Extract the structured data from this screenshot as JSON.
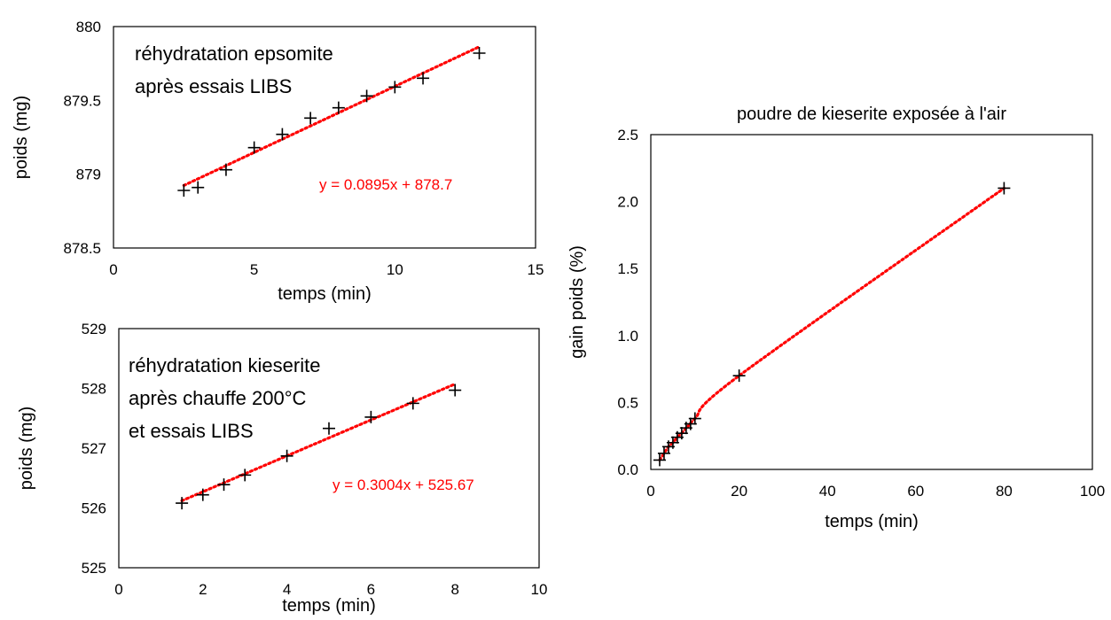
{
  "chart_data": [
    {
      "type": "scatter",
      "title": "",
      "xlabel": "temps (min)",
      "ylabel": "poids (mg)",
      "xlim": [
        0,
        15
      ],
      "ylim": [
        878.5,
        880
      ],
      "xticks": [
        "0",
        "5",
        "10",
        "15"
      ],
      "yticks": [
        "878.5",
        "879",
        "879.5",
        "880"
      ],
      "annotation_lines": [
        "réhydratation epsomite",
        "après essais LIBS"
      ],
      "trend_color": "#ff0000",
      "trendline": {
        "type": "linear",
        "slope": 0.0895,
        "intercept": 878.7,
        "label": "y = 0.0895x + 878.7"
      },
      "series": [
        {
          "x": [
            2.5,
            3,
            4,
            5,
            6,
            7,
            8,
            9,
            10,
            11,
            13
          ],
          "y": [
            878.89,
            878.91,
            879.03,
            879.18,
            879.27,
            879.38,
            879.45,
            879.53,
            879.59,
            879.65,
            879.82
          ]
        }
      ]
    },
    {
      "type": "scatter",
      "title": "",
      "xlabel": "temps (min)",
      "ylabel": "poids (mg)",
      "xlim": [
        0,
        10
      ],
      "ylim": [
        525,
        529
      ],
      "xticks": [
        "0",
        "2",
        "4",
        "6",
        "8",
        "10"
      ],
      "yticks": [
        "525",
        "526",
        "527",
        "528",
        "529"
      ],
      "annotation_lines": [
        "réhydratation kieserite",
        "après chauffe 200°C",
        "et essais LIBS"
      ],
      "trend_color": "#ff0000",
      "trendline": {
        "type": "linear",
        "slope": 0.3004,
        "intercept": 525.67,
        "label": "y = 0.3004x + 525.67"
      },
      "series": [
        {
          "x": [
            1.5,
            2,
            2.5,
            3,
            4,
            5,
            6,
            7,
            8
          ],
          "y": [
            526.08,
            526.22,
            526.39,
            526.55,
            526.87,
            527.33,
            527.52,
            527.75,
            527.97
          ]
        }
      ]
    },
    {
      "type": "scatter",
      "title": "poudre de kieserite exposée à l'air",
      "xlabel": "temps (min)",
      "ylabel": "gain poids (%)",
      "xlim": [
        0,
        100
      ],
      "ylim": [
        0,
        2.5
      ],
      "xticks": [
        "0",
        "20",
        "40",
        "60",
        "80",
        "100"
      ],
      "yticks": [
        "0.0",
        "0.5",
        "1.0",
        "1.5",
        "2.0",
        "2.5"
      ],
      "annotation_lines": [],
      "trend_color": "#ff0000",
      "trendline": {
        "type": "polynomial"
      },
      "series": [
        {
          "x": [
            2,
            3,
            4,
            5,
            6,
            7,
            8,
            9,
            10,
            20,
            80
          ],
          "y": [
            0.07,
            0.12,
            0.17,
            0.2,
            0.24,
            0.27,
            0.31,
            0.34,
            0.38,
            0.7,
            2.1
          ]
        }
      ]
    }
  ]
}
